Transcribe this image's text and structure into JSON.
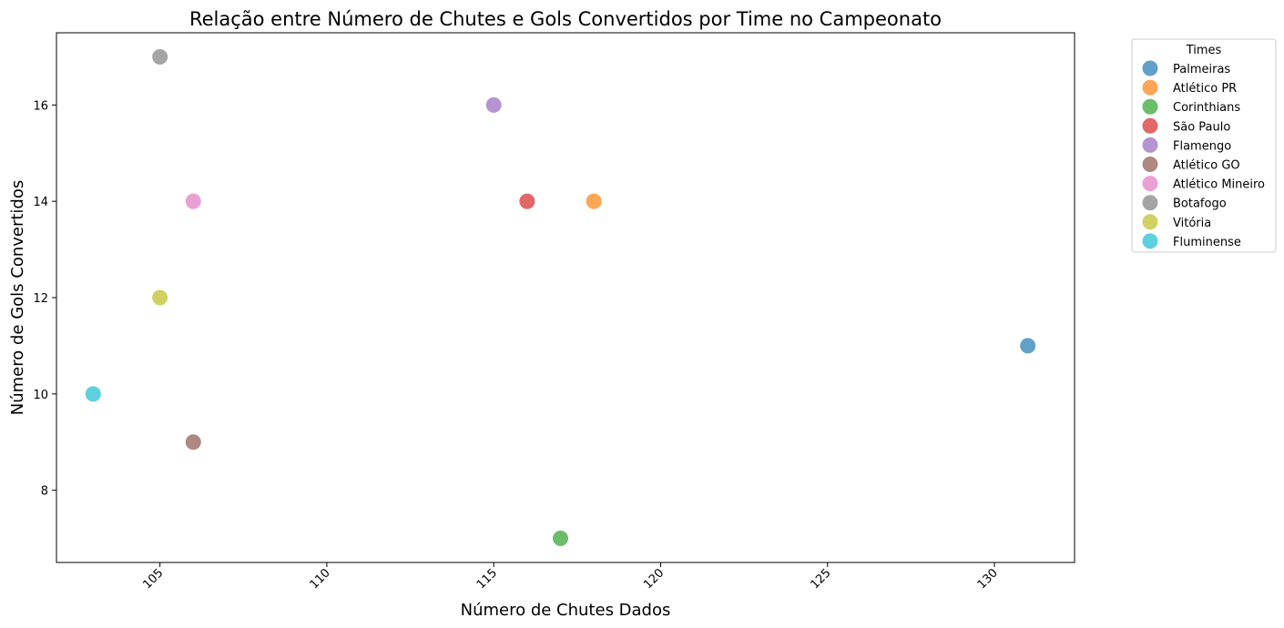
{
  "chart_data": {
    "type": "scatter",
    "title": "Relação entre Número de Chutes e Gols Convertidos por Time no Campeonato",
    "xlabel": "Número de Chutes Dados",
    "ylabel": "Número de Gols Convertidos",
    "xlim": [
      101.9,
      132.4
    ],
    "ylim": [
      6.5,
      17.5
    ],
    "xticks": [
      105,
      110,
      115,
      120,
      125,
      130
    ],
    "yticks": [
      8,
      10,
      12,
      14,
      16
    ],
    "grid": false,
    "legend": {
      "title": "Times",
      "placement": "outside-right-top"
    },
    "series": [
      {
        "name": "Palmeiras",
        "color": "#1f77b4",
        "points": [
          [
            131,
            11
          ]
        ]
      },
      {
        "name": "Atlético PR",
        "color": "#ff7f0e",
        "points": [
          [
            118,
            14
          ]
        ]
      },
      {
        "name": "Corinthians",
        "color": "#2ca02c",
        "points": [
          [
            117,
            7
          ]
        ]
      },
      {
        "name": "São Paulo",
        "color": "#d62728",
        "points": [
          [
            116,
            14
          ]
        ]
      },
      {
        "name": "Flamengo",
        "color": "#9467bd",
        "points": [
          [
            115,
            16
          ]
        ]
      },
      {
        "name": "Atlético GO",
        "color": "#8c564b",
        "points": [
          [
            106,
            9
          ]
        ]
      },
      {
        "name": "Atlético Mineiro",
        "color": "#e377c2",
        "points": [
          [
            106,
            14
          ]
        ]
      },
      {
        "name": "Botafogo",
        "color": "#7f7f7f",
        "points": [
          [
            105,
            17
          ]
        ]
      },
      {
        "name": "Vitória",
        "color": "#bcbd22",
        "points": [
          [
            105,
            12
          ]
        ]
      },
      {
        "name": "Fluminense",
        "color": "#17becf",
        "points": [
          [
            103,
            10
          ]
        ]
      }
    ]
  }
}
